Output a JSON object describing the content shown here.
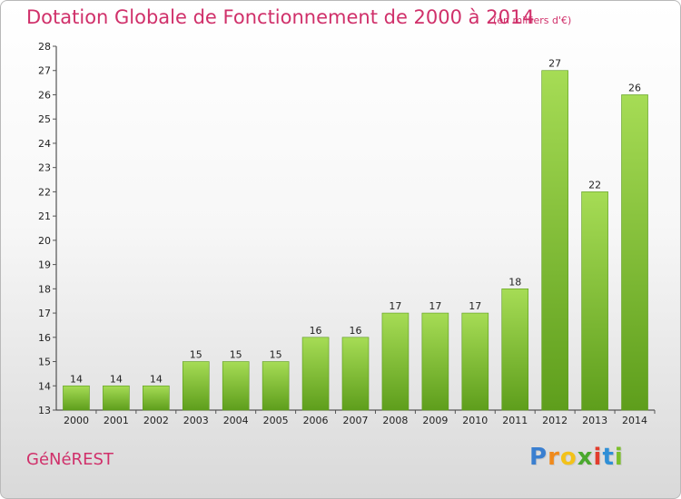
{
  "header": {
    "title": "Dotation Globale de Fonctionnement de 2000 à 2014",
    "unit": "(en milliers d'€)"
  },
  "footer": {
    "commune": "GéNéREST",
    "logo_letters": [
      "P",
      "r",
      "o",
      "x",
      "i",
      "t",
      "i"
    ],
    "logo_colors": [
      "#3a7fd0",
      "#f08a1c",
      "#f3c21a",
      "#4aa82e",
      "#e23d2d",
      "#2f8fd6",
      "#7bbf2a"
    ]
  },
  "colors": {
    "bar_light": "#a6dc55",
    "bar_dark": "#5e9e1c",
    "axis": "#333333",
    "grid_tick": "#555555"
  },
  "chart_data": {
    "type": "bar",
    "title": "Dotation Globale de Fonctionnement de 2000 à 2014",
    "xlabel": "",
    "ylabel": "",
    "categories": [
      "2000",
      "2001",
      "2002",
      "2003",
      "2004",
      "2005",
      "2006",
      "2007",
      "2008",
      "2009",
      "2010",
      "2011",
      "2012",
      "2013",
      "2014"
    ],
    "values": [
      14,
      14,
      14,
      15,
      15,
      15,
      16,
      16,
      17,
      17,
      17,
      18,
      27,
      22,
      26
    ],
    "ylim": [
      13,
      28
    ],
    "yticks": [
      13,
      14,
      15,
      16,
      17,
      18,
      19,
      20,
      21,
      22,
      23,
      24,
      25,
      26,
      27,
      28
    ],
    "grid": false,
    "legend": "none",
    "data_labels": true
  }
}
